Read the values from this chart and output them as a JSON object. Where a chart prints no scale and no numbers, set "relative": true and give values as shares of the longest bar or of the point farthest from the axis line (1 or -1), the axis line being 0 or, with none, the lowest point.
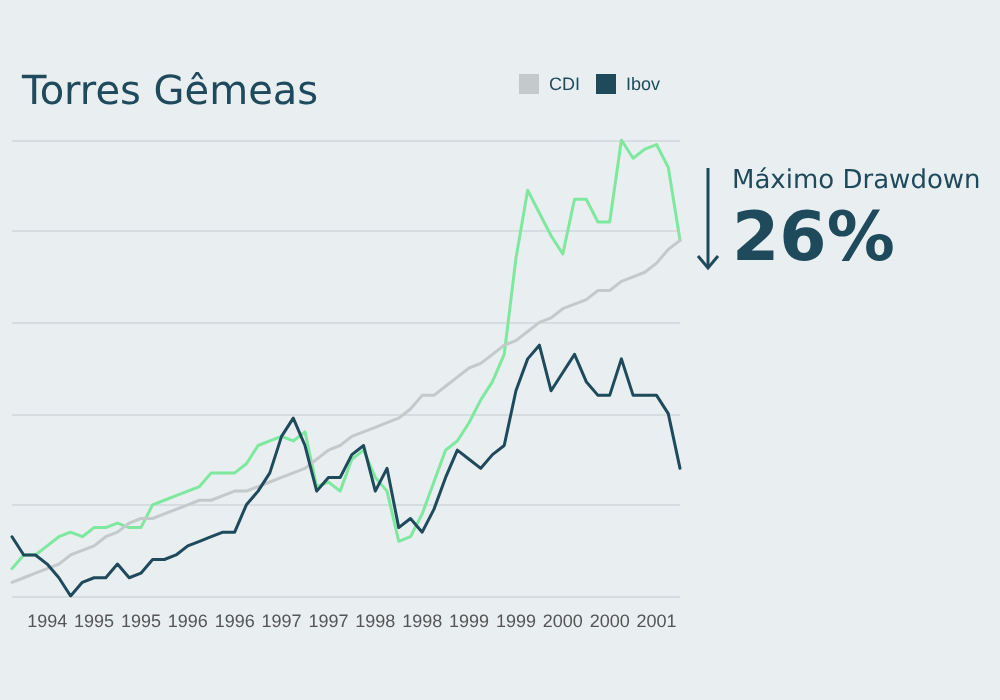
{
  "chart_data": {
    "type": "line",
    "title": "Torres Gêmeas",
    "relative": true,
    "grid": "y",
    "legend": "top right",
    "marker": "none",
    "line_style": "solid",
    "categories": [
      null,
      null,
      null,
      "1994",
      null,
      null,
      null,
      "1995",
      null,
      null,
      null,
      "1995",
      null,
      null,
      null,
      "1996",
      null,
      null,
      null,
      "1996",
      null,
      null,
      null,
      "1997",
      null,
      null,
      null,
      "1997",
      null,
      null,
      null,
      "1998",
      null,
      null,
      null,
      "1998",
      null,
      null,
      null,
      "1999",
      null,
      null,
      null,
      "1999",
      null,
      null,
      null,
      "2000",
      null,
      null,
      null,
      "2000",
      null,
      null,
      null,
      "2001",
      null,
      null
    ],
    "series": [
      {
        "color": "#7de89e",
        "values": [
          0.06,
          0.09,
          0.09,
          0.11,
          0.13,
          0.14,
          0.13,
          0.15,
          0.15,
          0.16,
          0.15,
          0.15,
          0.2,
          0.21,
          0.22,
          0.23,
          0.24,
          0.27,
          0.27,
          0.27,
          0.29,
          0.33,
          0.34,
          0.35,
          0.34,
          0.36,
          0.24,
          0.25,
          0.23,
          0.3,
          0.32,
          0.26,
          0.23,
          0.12,
          0.13,
          0.18,
          0.25,
          0.32,
          0.34,
          0.38,
          0.43,
          0.47,
          0.53,
          0.74,
          0.89,
          0.84,
          0.79,
          0.75,
          0.87,
          0.87,
          0.82,
          0.82,
          1.0,
          0.96,
          0.98,
          0.99,
          0.94,
          0.78
        ]
      },
      {
        "name": "CDI",
        "color": "#c4c9cc",
        "values": [
          0.03,
          0.04,
          0.05,
          0.06,
          0.07,
          0.09,
          0.1,
          0.11,
          0.13,
          0.14,
          0.16,
          0.17,
          0.17,
          0.18,
          0.19,
          0.2,
          0.21,
          0.21,
          0.22,
          0.23,
          0.23,
          0.24,
          0.25,
          0.26,
          0.27,
          0.28,
          0.3,
          0.32,
          0.33,
          0.35,
          0.36,
          0.37,
          0.38,
          0.39,
          0.41,
          0.44,
          0.44,
          0.46,
          0.48,
          0.5,
          0.51,
          0.53,
          0.55,
          0.56,
          0.58,
          0.6,
          0.61,
          0.63,
          0.64,
          0.65,
          0.67,
          0.67,
          0.69,
          0.7,
          0.71,
          0.73,
          0.76,
          0.78
        ]
      },
      {
        "name": "Ibov",
        "color": "#1e4a5c",
        "values": [
          0.13,
          0.09,
          0.09,
          0.07,
          0.04,
          0.0,
          0.03,
          0.04,
          0.04,
          0.07,
          0.04,
          0.05,
          0.08,
          0.08,
          0.09,
          0.11,
          0.12,
          0.13,
          0.14,
          0.14,
          0.2,
          0.23,
          0.27,
          0.35,
          0.39,
          0.33,
          0.23,
          0.26,
          0.26,
          0.31,
          0.33,
          0.23,
          0.28,
          0.15,
          0.17,
          0.14,
          0.19,
          0.26,
          0.32,
          0.3,
          0.28,
          0.31,
          0.33,
          0.45,
          0.52,
          0.55,
          0.45,
          0.49,
          0.53,
          0.47,
          0.44,
          0.44,
          0.52,
          0.44,
          0.44,
          0.44,
          0.4,
          0.28
        ]
      }
    ],
    "annotations": [
      "Máximo Drawdown",
      "26%"
    ]
  }
}
